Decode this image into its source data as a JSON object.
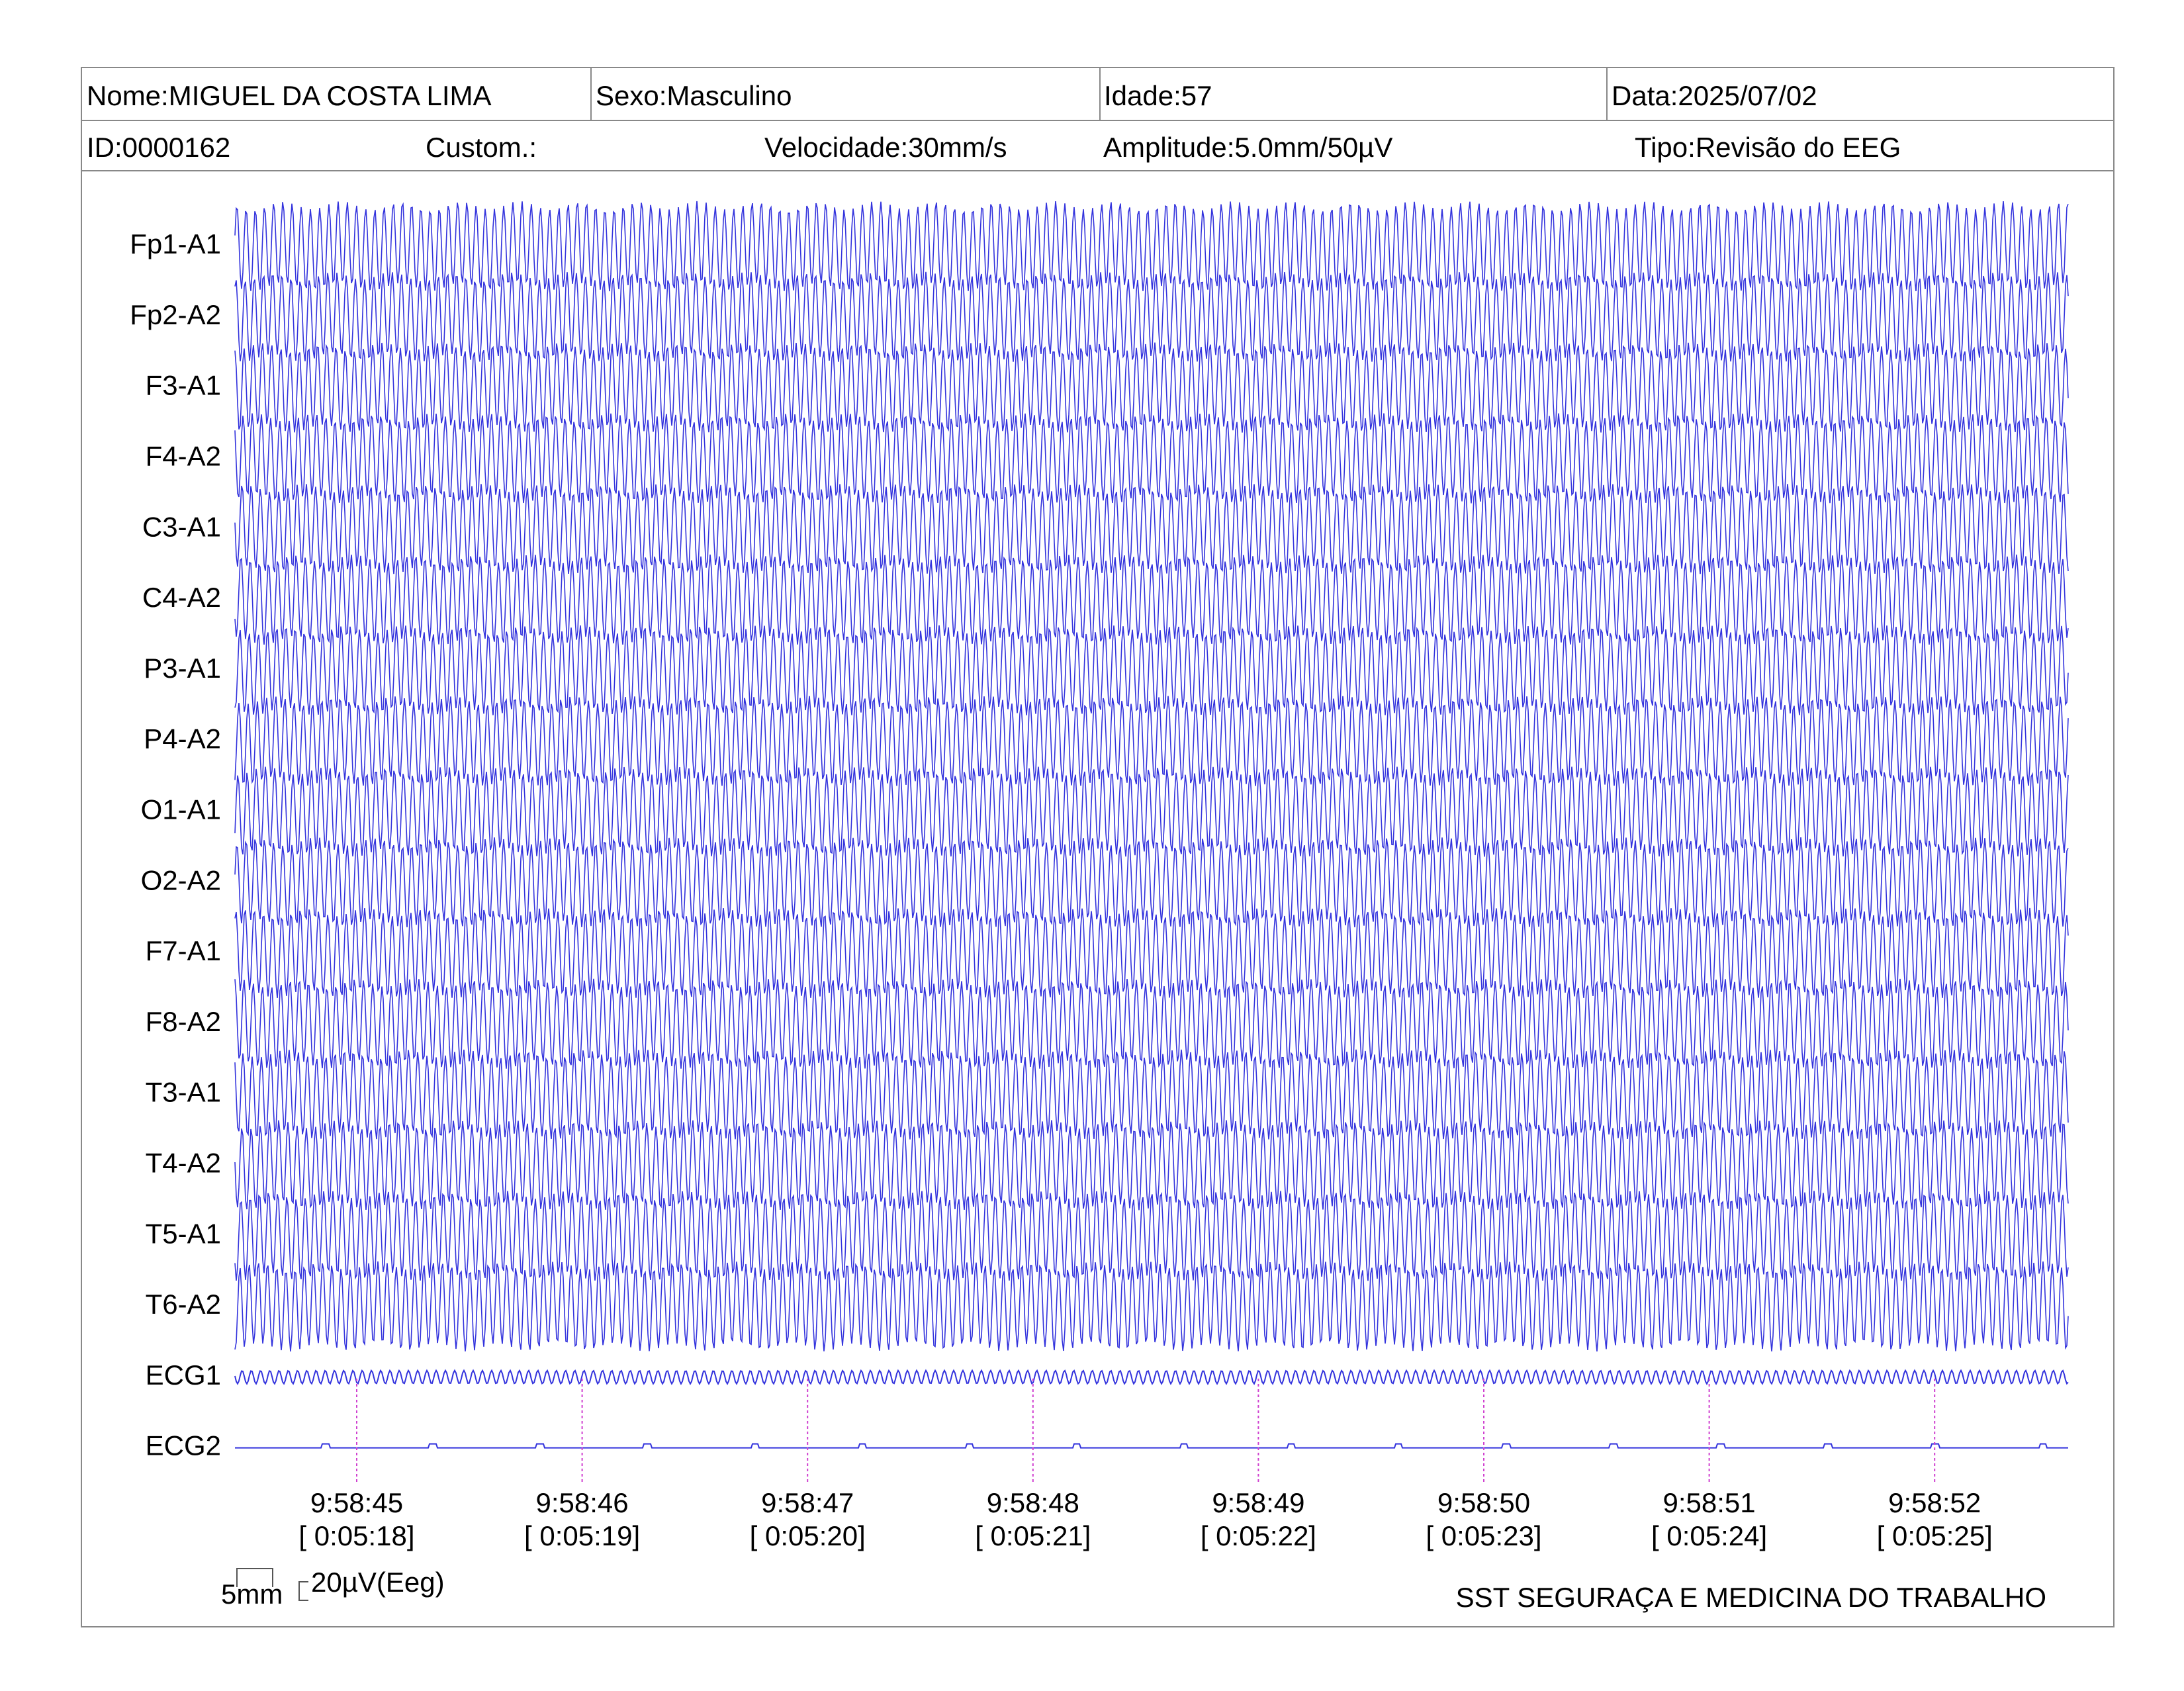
{
  "header": {
    "row1": [
      "Nome:MIGUEL DA COSTA LIMA",
      "Sexo:Masculino",
      "Idade:57",
      "Data:2025/07/02"
    ],
    "row2": [
      "ID:0000162",
      "Custom.:",
      "Velocidade:30mm/s",
      "Amplitude:5.0mm/50µV",
      "Tipo:Revisão do EEG"
    ]
  },
  "channels": [
    "Fp1-A1",
    "Fp2-A2",
    "F3-A1",
    "F4-A2",
    "C3-A1",
    "C4-A2",
    "P3-A1",
    "P4-A2",
    "O1-A1",
    "O2-A2",
    "F7-A1",
    "F8-A2",
    "T3-A1",
    "T4-A2",
    "T5-A1",
    "T6-A2",
    "ECG1",
    "ECG2"
  ],
  "time_marks": [
    {
      "clock": "9:58:45",
      "elapsed": "[ 0:05:18]"
    },
    {
      "clock": "9:58:46",
      "elapsed": "[ 0:05:19]"
    },
    {
      "clock": "9:58:47",
      "elapsed": "[ 0:05:20]"
    },
    {
      "clock": "9:58:48",
      "elapsed": "[ 0:05:21]"
    },
    {
      "clock": "9:58:49",
      "elapsed": "[ 0:05:22]"
    },
    {
      "clock": "9:58:50",
      "elapsed": "[ 0:05:23]"
    },
    {
      "clock": "9:58:51",
      "elapsed": "[ 0:05:24]"
    },
    {
      "clock": "9:58:52",
      "elapsed": "[ 0:05:25]"
    }
  ],
  "scale": {
    "time": "5mm",
    "amplitude": "20µV(Eeg)"
  },
  "footer": "SST SEGURAÇA E MEDICINA DO TRABALHO"
}
